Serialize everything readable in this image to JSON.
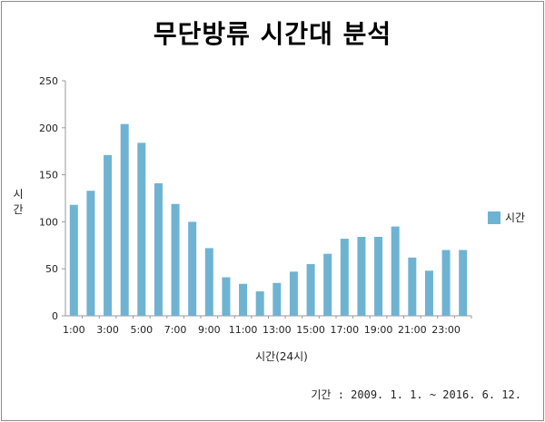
{
  "chart_data": {
    "type": "bar",
    "title": "무단방류 시간대 분석",
    "xlabel": "시간(24시)",
    "ylabel": "시간",
    "ylim": [
      0,
      250
    ],
    "yticks": [
      0,
      50,
      100,
      150,
      200,
      250
    ],
    "categories": [
      "1:00",
      "2:00",
      "3:00",
      "4:00",
      "5:00",
      "6:00",
      "7:00",
      "8:00",
      "9:00",
      "10:00",
      "11:00",
      "12:00",
      "13:00",
      "14:00",
      "15:00",
      "16:00",
      "17:00",
      "18:00",
      "19:00",
      "20:00",
      "21:00",
      "22:00",
      "23:00",
      "24:00"
    ],
    "visible_tick_labels": [
      "1:00",
      "3:00",
      "5:00",
      "7:00",
      "9:00",
      "11:00",
      "13:00",
      "15:00",
      "17:00",
      "19:00",
      "21:00",
      "23:00"
    ],
    "series": [
      {
        "name": "시간",
        "color": "#6fb3d3",
        "values": [
          118,
          133,
          171,
          204,
          184,
          141,
          119,
          100,
          72,
          41,
          34,
          26,
          35,
          47,
          55,
          66,
          82,
          84,
          84,
          95,
          62,
          48,
          70,
          70
        ]
      }
    ],
    "legend": "right",
    "grid": false,
    "note": "기간 : 2009. 1. 1. ~ 2016. 6. 12."
  }
}
